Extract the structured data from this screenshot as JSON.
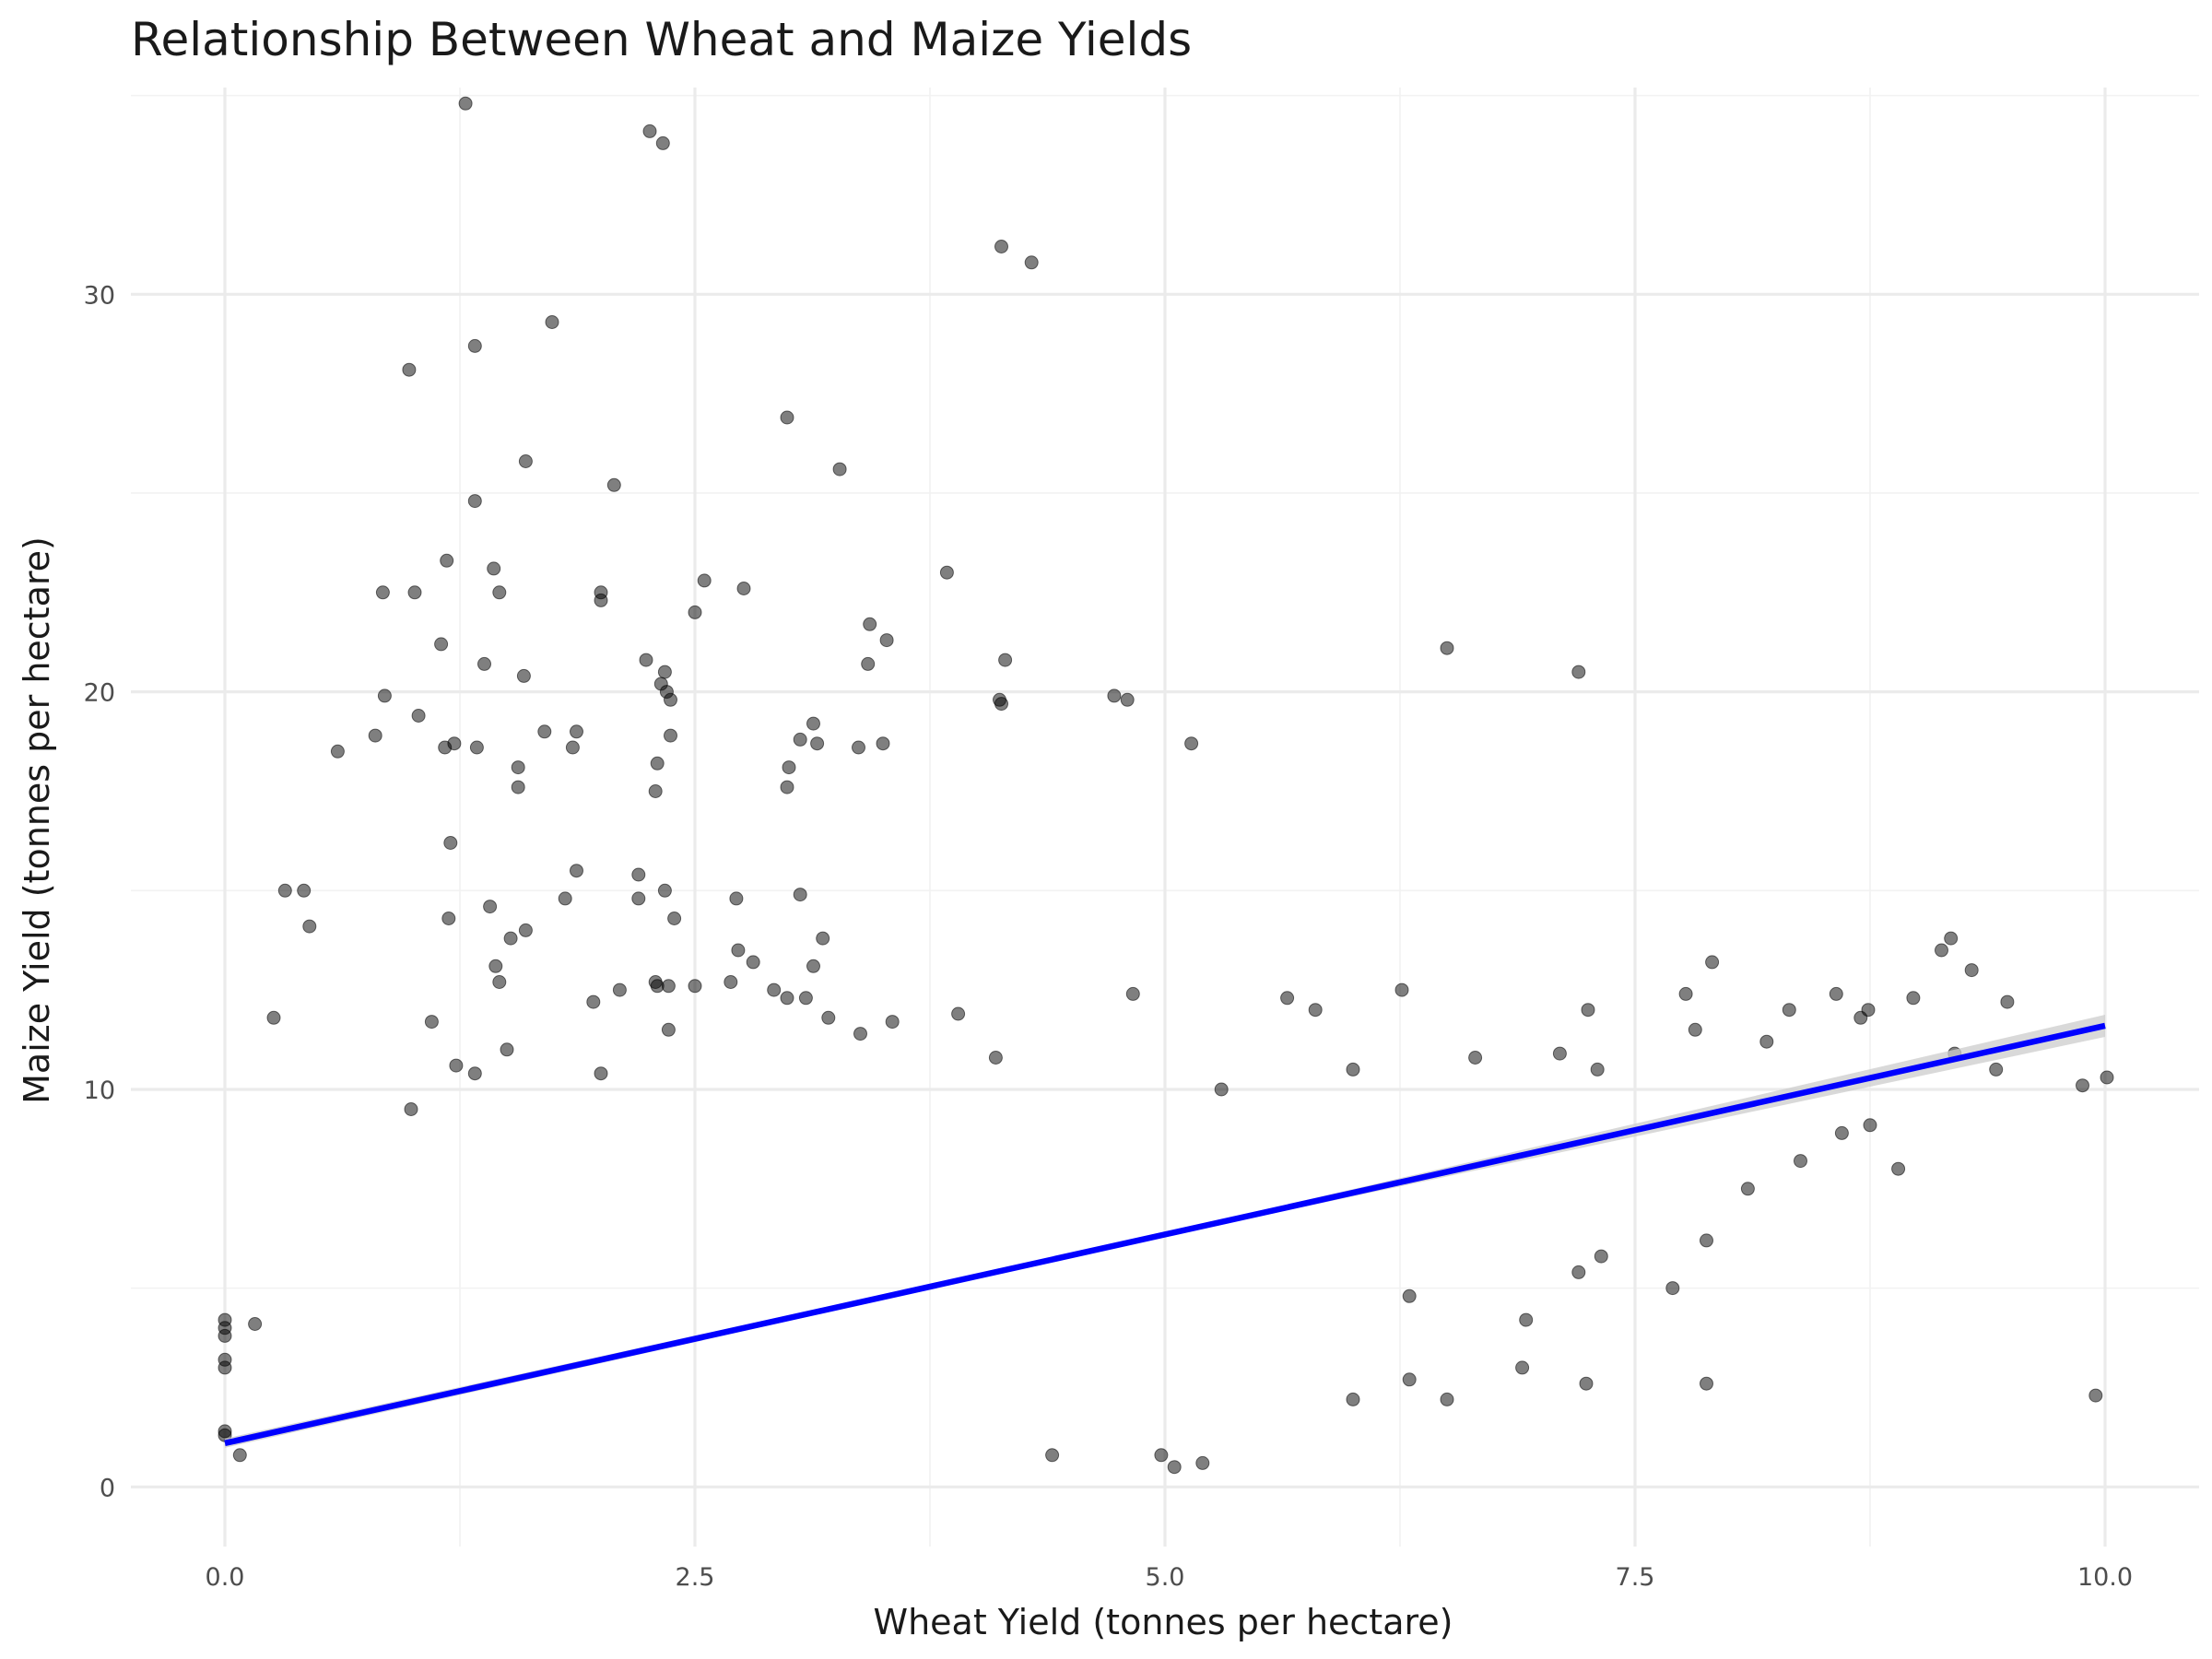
{
  "chart_data": {
    "type": "scatter",
    "title": "Relationship Between Wheat and Maize Yields",
    "xlabel": "Wheat Yield (tonnes per hectare)",
    "ylabel": "Maize Yield (tonnes per hectare)",
    "xlim": [
      -0.5,
      10.5
    ],
    "ylim": [
      -1.5,
      35.2
    ],
    "x_ticks": [
      0.0,
      2.5,
      5.0,
      7.5,
      10.0
    ],
    "x_tick_labels": [
      "0.0",
      "2.5",
      "5.0",
      "7.5",
      "10.0"
    ],
    "y_ticks": [
      0,
      10,
      20,
      30
    ],
    "y_tick_labels": [
      "0",
      "10",
      "20",
      "30"
    ],
    "grid": true,
    "point_color": "#000000",
    "point_alpha": 0.5,
    "trend_color": "#0000ff",
    "trend_band_color": "#cccccc",
    "trend_line": {
      "method": "linear",
      "x": [
        0,
        10
      ],
      "y": [
        1.1,
        11.6
      ]
    },
    "points": [
      [
        1.28,
        34.8
      ],
      [
        2.26,
        34.1
      ],
      [
        2.33,
        33.8
      ],
      [
        4.13,
        31.2
      ],
      [
        4.29,
        30.8
      ],
      [
        1.33,
        28.7
      ],
      [
        1.74,
        29.3
      ],
      [
        0.98,
        28.1
      ],
      [
        2.99,
        26.9
      ],
      [
        3.27,
        25.6
      ],
      [
        1.6,
        25.8
      ],
      [
        2.07,
        25.2
      ],
      [
        1.33,
        24.8
      ],
      [
        1.18,
        23.3
      ],
      [
        1.43,
        23.1
      ],
      [
        3.84,
        23.0
      ],
      [
        2.55,
        22.8
      ],
      [
        2.76,
        22.6
      ],
      [
        0.84,
        22.5
      ],
      [
        1.01,
        22.5
      ],
      [
        1.46,
        22.5
      ],
      [
        2.0,
        22.5
      ],
      [
        2.0,
        22.3
      ],
      [
        2.5,
        22.0
      ],
      [
        3.43,
        21.7
      ],
      [
        3.52,
        21.3
      ],
      [
        1.15,
        21.2
      ],
      [
        6.5,
        21.1
      ],
      [
        2.24,
        20.8
      ],
      [
        4.15,
        20.8
      ],
      [
        1.38,
        20.7
      ],
      [
        3.42,
        20.7
      ],
      [
        7.2,
        20.5
      ],
      [
        1.59,
        20.4
      ],
      [
        2.34,
        20.5
      ],
      [
        2.32,
        20.2
      ],
      [
        2.35,
        20.0
      ],
      [
        2.37,
        19.8
      ],
      [
        4.12,
        19.8
      ],
      [
        4.13,
        19.7
      ],
      [
        4.73,
        19.9
      ],
      [
        4.8,
        19.8
      ],
      [
        0.85,
        19.9
      ],
      [
        1.03,
        19.4
      ],
      [
        3.13,
        19.2
      ],
      [
        1.7,
        19.0
      ],
      [
        1.87,
        19.0
      ],
      [
        0.6,
        18.5
      ],
      [
        0.8,
        18.9
      ],
      [
        1.17,
        18.6
      ],
      [
        1.22,
        18.7
      ],
      [
        1.34,
        18.6
      ],
      [
        1.85,
        18.6
      ],
      [
        2.37,
        18.9
      ],
      [
        3.06,
        18.8
      ],
      [
        3.15,
        18.7
      ],
      [
        3.37,
        18.6
      ],
      [
        3.5,
        18.7
      ],
      [
        5.14,
        18.7
      ],
      [
        2.3,
        18.2
      ],
      [
        1.56,
        18.1
      ],
      [
        3.0,
        18.1
      ],
      [
        1.56,
        17.6
      ],
      [
        2.29,
        17.5
      ],
      [
        2.99,
        17.6
      ],
      [
        1.2,
        16.2
      ],
      [
        1.87,
        15.5
      ],
      [
        2.2,
        15.4
      ],
      [
        0.32,
        15.0
      ],
      [
        0.42,
        15.0
      ],
      [
        2.34,
        15.0
      ],
      [
        3.06,
        14.9
      ],
      [
        1.81,
        14.8
      ],
      [
        2.72,
        14.8
      ],
      [
        2.2,
        14.8
      ],
      [
        1.41,
        14.6
      ],
      [
        0.45,
        14.1
      ],
      [
        1.19,
        14.3
      ],
      [
        2.39,
        14.3
      ],
      [
        1.6,
        14.0
      ],
      [
        1.52,
        13.8
      ],
      [
        3.18,
        13.8
      ],
      [
        2.73,
        13.5
      ],
      [
        1.44,
        13.1
      ],
      [
        2.81,
        13.2
      ],
      [
        3.13,
        13.1
      ],
      [
        1.46,
        12.7
      ],
      [
        2.29,
        12.7
      ],
      [
        2.3,
        12.6
      ],
      [
        2.36,
        12.6
      ],
      [
        2.5,
        12.6
      ],
      [
        2.69,
        12.7
      ],
      [
        2.1,
        12.5
      ],
      [
        2.92,
        12.5
      ],
      [
        2.99,
        12.3
      ],
      [
        1.96,
        12.2
      ],
      [
        3.09,
        12.3
      ],
      [
        0.26,
        11.8
      ],
      [
        1.1,
        11.7
      ],
      [
        3.21,
        11.8
      ],
      [
        2.36,
        11.5
      ],
      [
        3.38,
        11.4
      ],
      [
        3.55,
        11.7
      ],
      [
        3.9,
        11.9
      ],
      [
        4.83,
        12.4
      ],
      [
        5.65,
        12.3
      ],
      [
        5.8,
        12.0
      ],
      [
        6.26,
        12.5
      ],
      [
        7.25,
        12.0
      ],
      [
        7.91,
        13.2
      ],
      [
        8.57,
        12.4
      ],
      [
        8.98,
        12.3
      ],
      [
        9.13,
        13.5
      ],
      [
        9.18,
        13.8
      ],
      [
        9.29,
        13.0
      ],
      [
        9.48,
        12.2
      ],
      [
        8.74,
        12.0
      ],
      [
        8.32,
        12.0
      ],
      [
        7.77,
        12.4
      ],
      [
        1.23,
        10.6
      ],
      [
        1.33,
        10.4
      ],
      [
        2.0,
        10.4
      ],
      [
        0.99,
        9.5
      ],
      [
        1.5,
        11.0
      ],
      [
        4.1,
        10.8
      ],
      [
        5.3,
        10.0
      ],
      [
        6.0,
        10.5
      ],
      [
        6.65,
        10.8
      ],
      [
        7.1,
        10.9
      ],
      [
        7.3,
        10.5
      ],
      [
        7.82,
        11.5
      ],
      [
        8.2,
        11.2
      ],
      [
        8.7,
        11.8
      ],
      [
        9.2,
        10.9
      ],
      [
        9.42,
        10.5
      ],
      [
        9.88,
        10.1
      ],
      [
        10.01,
        10.3
      ],
      [
        8.75,
        9.1
      ],
      [
        8.9,
        8.0
      ],
      [
        8.6,
        8.9
      ],
      [
        8.38,
        8.2
      ],
      [
        8.1,
        7.5
      ],
      [
        7.88,
        6.2
      ],
      [
        7.7,
        5.0
      ],
      [
        7.2,
        5.4
      ],
      [
        7.32,
        5.8
      ],
      [
        6.92,
        4.2
      ],
      [
        6.3,
        4.8
      ],
      [
        9.95,
        2.3
      ],
      [
        7.88,
        2.6
      ],
      [
        7.24,
        2.6
      ],
      [
        6.9,
        3.0
      ],
      [
        6.5,
        2.2
      ],
      [
        6.3,
        2.7
      ],
      [
        6.0,
        2.2
      ],
      [
        5.2,
        0.6
      ],
      [
        5.05,
        0.5
      ],
      [
        4.4,
        0.8
      ],
      [
        4.98,
        0.8
      ],
      [
        0.0,
        4.2
      ],
      [
        0.0,
        4.0
      ],
      [
        0.0,
        3.8
      ],
      [
        0.0,
        3.2
      ],
      [
        0.0,
        3.0
      ],
      [
        0.0,
        1.4
      ],
      [
        0.0,
        1.3
      ],
      [
        0.16,
        4.1
      ],
      [
        0.08,
        0.8
      ]
    ]
  }
}
